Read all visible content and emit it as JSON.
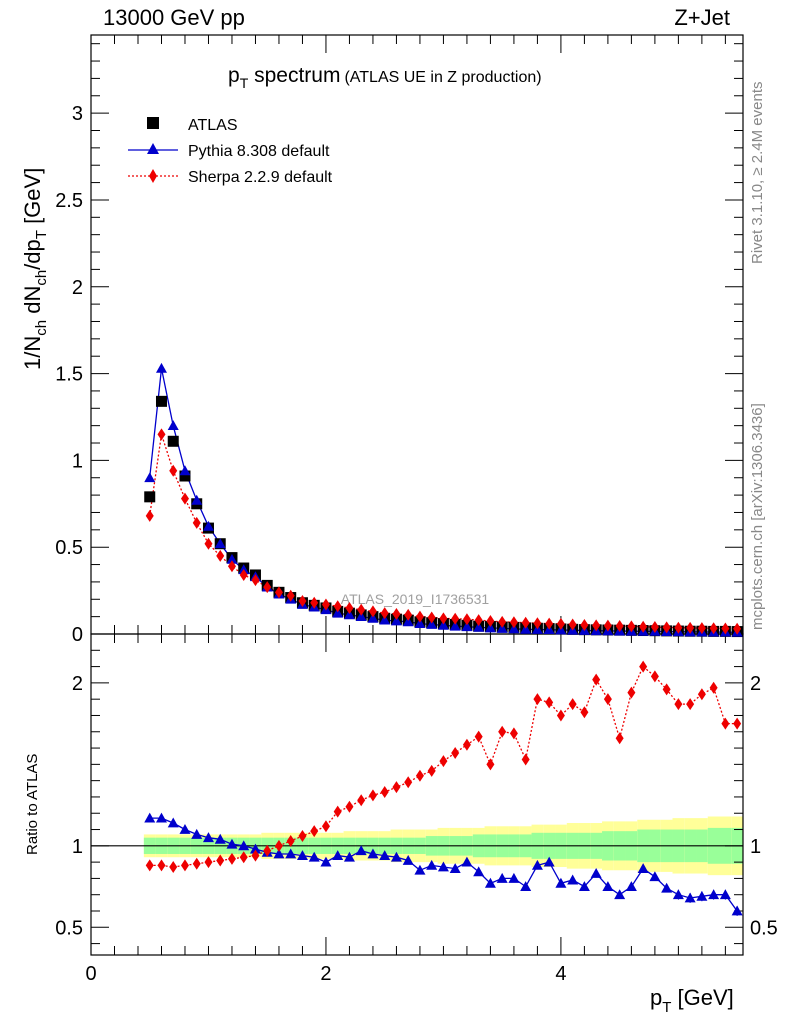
{
  "header": {
    "energy": "13000 GeV pp",
    "process": "Z+Jet"
  },
  "side_text": {
    "rivet": "Rivet 3.1.10, ≥ 2.4M events",
    "mcplots": "mcplots.cern.ch [arXiv:1306.3436]"
  },
  "title": {
    "main": "p",
    "main_sub": "T",
    "main_rest": " spectrum",
    "extra": "(ATLAS UE in Z production)"
  },
  "analysis_label": "ATLAS_2019_I1736531",
  "legend": {
    "atlas": "ATLAS",
    "pythia": "Pythia 8.308 default",
    "sherpa": "Sherpa 2.2.9 default"
  },
  "y_label_main": {
    "p1": "1/N",
    "s1": "ch",
    "p2": " dN",
    "s2": "ch",
    "p3": "/dp",
    "s3": "T",
    "p4": " [GeV]"
  },
  "y_label_ratio": "Ratio to ATLAS",
  "x_label": {
    "p1": "p",
    "s1": "T",
    "p2": " [GeV]"
  },
  "colors": {
    "atlas": "#000000",
    "pythia": "#0000cc",
    "sherpa": "#ee0000",
    "band_inner": "#99ff99",
    "band_outer": "#ffff99"
  },
  "chart_data": {
    "type": "scatter",
    "x_range": [
      0,
      5.55
    ],
    "main_ylim": [
      0,
      3.45
    ],
    "ratio_ylim": [
      0.33,
      2.3
    ],
    "x_ticks": [
      0,
      2,
      4
    ],
    "main_y_ticks": [
      0,
      0.5,
      1,
      1.5,
      2,
      2.5,
      3
    ],
    "ratio_y_ticks": [
      0.5,
      1,
      2
    ],
    "x": [
      0.5,
      0.6,
      0.7,
      0.8,
      0.9,
      1.0,
      1.1,
      1.2,
      1.3,
      1.4,
      1.5,
      1.6,
      1.7,
      1.8,
      1.9,
      2.0,
      2.1,
      2.2,
      2.3,
      2.4,
      2.5,
      2.6,
      2.7,
      2.8,
      2.9,
      3.0,
      3.1,
      3.2,
      3.3,
      3.4,
      3.5,
      3.6,
      3.7,
      3.8,
      3.9,
      4.0,
      4.1,
      4.2,
      4.3,
      4.4,
      4.5,
      4.6,
      4.7,
      4.8,
      4.9,
      5.0,
      5.1,
      5.2,
      5.3,
      5.4,
      5.5
    ],
    "atlas": [
      0.79,
      1.34,
      1.11,
      0.91,
      0.75,
      0.61,
      0.52,
      0.44,
      0.38,
      0.34,
      0.28,
      0.24,
      0.21,
      0.18,
      0.165,
      0.15,
      0.13,
      0.12,
      0.11,
      0.1,
      0.09,
      0.085,
      0.08,
      0.07,
      0.065,
      0.06,
      0.055,
      0.05,
      0.045,
      0.043,
      0.04,
      0.038,
      0.035,
      0.033,
      0.031,
      0.029,
      0.027,
      0.025,
      0.024,
      0.023,
      0.022,
      0.021,
      0.02,
      0.019,
      0.018,
      0.017,
      0.016,
      0.016,
      0.015,
      0.015,
      0.014
    ],
    "pythia_main": [
      0.9,
      1.53,
      1.2,
      0.94,
      0.77,
      0.62,
      0.52,
      0.43,
      0.37,
      0.33,
      0.27,
      0.23,
      0.2,
      0.17,
      0.155,
      0.14,
      0.12,
      0.11,
      0.1,
      0.09,
      0.08,
      0.075,
      0.07,
      0.06,
      0.055,
      0.05,
      0.045,
      0.042,
      0.038,
      0.035,
      0.032,
      0.03,
      0.027,
      0.026,
      0.025,
      0.023,
      0.022,
      0.02,
      0.019,
      0.018,
      0.017,
      0.016,
      0.015,
      0.015,
      0.014,
      0.013,
      0.012,
      0.012,
      0.011,
      0.011,
      0.01
    ],
    "sherpa_main": [
      0.68,
      1.15,
      0.94,
      0.78,
      0.64,
      0.52,
      0.45,
      0.39,
      0.34,
      0.31,
      0.27,
      0.24,
      0.22,
      0.19,
      0.18,
      0.17,
      0.16,
      0.15,
      0.14,
      0.13,
      0.12,
      0.115,
      0.11,
      0.1,
      0.095,
      0.09,
      0.088,
      0.085,
      0.08,
      0.075,
      0.07,
      0.068,
      0.065,
      0.062,
      0.06,
      0.058,
      0.055,
      0.052,
      0.05,
      0.048,
      0.046,
      0.044,
      0.042,
      0.04,
      0.038,
      0.036,
      0.035,
      0.034,
      0.033,
      0.032,
      0.03
    ],
    "pythia_ratio": [
      1.17,
      1.17,
      1.14,
      1.1,
      1.07,
      1.05,
      1.04,
      1.01,
      1.0,
      0.98,
      0.96,
      0.95,
      0.95,
      0.94,
      0.93,
      0.9,
      0.94,
      0.93,
      0.97,
      0.95,
      0.94,
      0.93,
      0.91,
      0.85,
      0.88,
      0.87,
      0.86,
      0.9,
      0.84,
      0.77,
      0.8,
      0.8,
      0.75,
      0.88,
      0.9,
      0.77,
      0.79,
      0.75,
      0.83,
      0.75,
      0.7,
      0.75,
      0.86,
      0.81,
      0.74,
      0.7,
      0.68,
      0.69,
      0.7,
      0.7,
      0.6
    ],
    "sherpa_ratio": [
      0.88,
      0.88,
      0.87,
      0.88,
      0.89,
      0.9,
      0.91,
      0.92,
      0.93,
      0.94,
      0.97,
      1.0,
      1.03,
      1.06,
      1.09,
      1.12,
      1.21,
      1.24,
      1.28,
      1.31,
      1.33,
      1.36,
      1.39,
      1.43,
      1.46,
      1.52,
      1.57,
      1.62,
      1.67,
      1.5,
      1.7,
      1.69,
      1.53,
      1.9,
      1.88,
      1.8,
      1.87,
      1.82,
      2.02,
      1.9,
      1.66,
      1.94,
      2.1,
      2.04,
      1.96,
      1.87,
      1.87,
      1.93,
      1.97,
      1.75,
      1.75
    ],
    "band_inner": [
      0.05,
      0.05,
      0.05,
      0.05,
      0.05,
      0.05,
      0.05,
      0.05,
      0.05,
      0.05,
      0.05,
      0.05,
      0.05,
      0.05,
      0.05,
      0.05,
      0.05,
      0.05,
      0.05,
      0.05,
      0.05,
      0.05,
      0.05,
      0.05,
      0.06,
      0.06,
      0.06,
      0.06,
      0.07,
      0.07,
      0.07,
      0.07,
      0.07,
      0.08,
      0.08,
      0.08,
      0.08,
      0.08,
      0.08,
      0.09,
      0.09,
      0.09,
      0.1,
      0.1,
      0.1,
      0.1,
      0.1,
      0.1,
      0.11,
      0.11,
      0.11
    ],
    "band_outer": [
      0.07,
      0.07,
      0.07,
      0.07,
      0.07,
      0.07,
      0.07,
      0.07,
      0.07,
      0.07,
      0.08,
      0.08,
      0.08,
      0.08,
      0.08,
      0.08,
      0.08,
      0.09,
      0.09,
      0.09,
      0.09,
      0.1,
      0.1,
      0.1,
      0.1,
      0.11,
      0.11,
      0.11,
      0.11,
      0.12,
      0.12,
      0.12,
      0.12,
      0.13,
      0.13,
      0.13,
      0.14,
      0.14,
      0.14,
      0.15,
      0.15,
      0.15,
      0.16,
      0.16,
      0.16,
      0.17,
      0.17,
      0.17,
      0.18,
      0.18,
      0.18
    ],
    "ratio_errors": [
      0.02,
      0.02,
      0.02,
      0.02,
      0.02,
      0.02,
      0.02,
      0.02,
      0.02,
      0.02,
      0.02,
      0.02,
      0.02,
      0.02,
      0.02,
      0.02,
      0.02,
      0.02,
      0.02,
      0.02,
      0.02,
      0.02,
      0.02,
      0.02,
      0.02,
      0.02,
      0.02,
      0.02,
      0.02,
      0.02,
      0.02,
      0.02,
      0.02,
      0.025,
      0.025,
      0.025,
      0.025,
      0.025,
      0.025,
      0.025,
      0.025,
      0.025,
      0.025,
      0.025,
      0.025,
      0.03,
      0.03,
      0.03,
      0.03,
      0.03,
      0.03
    ]
  }
}
